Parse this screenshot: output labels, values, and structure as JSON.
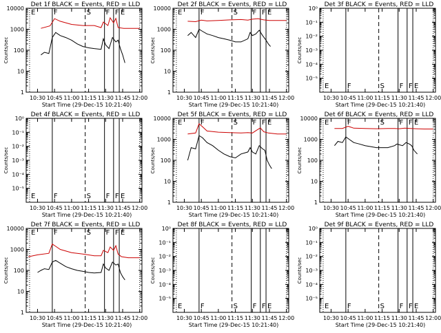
{
  "colors": {
    "events": "#000000",
    "lld": "#cc0000",
    "axis": "#000000"
  },
  "time_axis": {
    "ticks": [
      "10:30",
      "10:45",
      "11:00",
      "11:15",
      "11:30",
      "11:45",
      "12:00"
    ],
    "tick_minutes": [
      630,
      645,
      660,
      675,
      690,
      705,
      720
    ],
    "xlim_minutes": [
      620,
      722
    ],
    "label": "Start Time (29-Dec-15 10:21:40)"
  },
  "ylabel": "Counts/sec",
  "data_ticks": [
    "1",
    "10",
    "100",
    "1000",
    "10000"
  ],
  "empty_ticks": [
    "10⁰",
    "10⁻¹",
    "10⁻²",
    "10⁻³",
    "10⁻⁴",
    "10⁻⁵"
  ],
  "markers": [
    {
      "label": "E",
      "minute": 623,
      "style": "dotted"
    },
    {
      "label": "F",
      "minute": 643,
      "style": "solid"
    },
    {
      "label": "S",
      "minute": 672,
      "style": "dashed"
    },
    {
      "label": "F",
      "minute": 689,
      "style": "solid"
    },
    {
      "label": "F",
      "minute": 697,
      "style": "solid"
    },
    {
      "label": "E",
      "minute": 702,
      "style": "solid"
    }
  ],
  "chart_data": [
    {
      "type": "line",
      "title": "Det 1f BLACK = Events, RED = LLD",
      "scale": "log",
      "ylim": [
        1,
        10000
      ],
      "series": [
        {
          "name": "RED = LLD",
          "color": "#cc0000",
          "x": [
            633,
            641,
            645,
            650,
            660,
            670,
            680,
            686,
            688,
            692,
            694,
            697,
            699,
            701,
            706,
            712,
            720
          ],
          "y": [
            1100,
            1450,
            3200,
            2400,
            1700,
            1500,
            1500,
            1200,
            2200,
            1500,
            3500,
            2000,
            3300,
            1200,
            1100,
            1100,
            1100
          ]
        },
        {
          "name": "BLACK = Events",
          "color": "#000000",
          "x": [
            633,
            636,
            640,
            643,
            646,
            650,
            655,
            660,
            665,
            670,
            675,
            680,
            686,
            688,
            690,
            693,
            696,
            699,
            701,
            703,
            705,
            707
          ],
          "y": [
            60,
            80,
            70,
            400,
            700,
            500,
            400,
            300,
            200,
            150,
            130,
            120,
            110,
            350,
            180,
            120,
            400,
            250,
            300,
            120,
            60,
            25
          ]
        }
      ]
    },
    {
      "type": "line",
      "title": "Det 2f BLACK = Events, RED = LLD",
      "scale": "log",
      "ylim": [
        1,
        10000
      ],
      "series": [
        {
          "name": "RED = LLD",
          "color": "#cc0000",
          "x": [
            633,
            640,
            645,
            650,
            660,
            670,
            680,
            686,
            690,
            695,
            700,
            705,
            712,
            720
          ],
          "y": [
            2400,
            2300,
            2700,
            2500,
            2600,
            2800,
            2900,
            2700,
            3000,
            3200,
            2800,
            2600,
            2600,
            2600
          ]
        },
        {
          "name": "BLACK = Events",
          "color": "#000000",
          "x": [
            633,
            636,
            640,
            643,
            646,
            650,
            655,
            660,
            665,
            670,
            675,
            680,
            686,
            688,
            690,
            693,
            696,
            699,
            702,
            704,
            706
          ],
          "y": [
            500,
            700,
            400,
            1000,
            800,
            600,
            500,
            400,
            350,
            300,
            250,
            250,
            350,
            700,
            500,
            600,
            900,
            500,
            300,
            200,
            150
          ]
        }
      ]
    },
    {
      "type": "line",
      "title": "Det 3f BLACK = Events, RED = LLD",
      "scale": "log",
      "ylim": [
        1e-06,
        1
      ],
      "series": []
    },
    {
      "type": "line",
      "title": "Det 4f BLACK = Events, RED = LLD",
      "scale": "log",
      "ylim": [
        1e-06,
        1
      ],
      "series": []
    },
    {
      "type": "line",
      "title": "Det 5f BLACK = Events, RED = LLD",
      "scale": "log",
      "ylim": [
        1,
        10000
      ],
      "series": [
        {
          "name": "RED = LLD",
          "color": "#cc0000",
          "x": [
            633,
            640,
            643,
            646,
            650,
            660,
            670,
            680,
            686,
            690,
            694,
            697,
            700,
            704,
            712,
            720
          ],
          "y": [
            1800,
            2000,
            5500,
            4000,
            2500,
            2200,
            2100,
            2000,
            2100,
            2000,
            2800,
            3500,
            2300,
            2000,
            1800,
            1800
          ]
        },
        {
          "name": "BLACK = Events",
          "color": "#000000",
          "x": [
            633,
            636,
            640,
            643,
            646,
            650,
            655,
            660,
            665,
            670,
            675,
            680,
            686,
            688,
            690,
            693,
            696,
            699,
            701,
            703,
            705,
            707
          ],
          "y": [
            100,
            400,
            350,
            1500,
            1200,
            700,
            500,
            300,
            200,
            150,
            130,
            200,
            250,
            400,
            250,
            200,
            500,
            350,
            300,
            100,
            60,
            40
          ]
        }
      ]
    },
    {
      "type": "line",
      "title": "Det 6f BLACK = Events, RED = LLD",
      "scale": "log",
      "ylim": [
        1,
        10000
      ],
      "series": [
        {
          "name": "RED = LLD",
          "color": "#cc0000",
          "x": [
            633,
            640,
            645,
            650,
            660,
            670,
            680,
            686,
            690,
            695,
            700,
            705,
            712,
            720
          ],
          "y": [
            3300,
            3300,
            4200,
            3400,
            3300,
            3200,
            3300,
            3300,
            3200,
            3400,
            3300,
            3200,
            3100,
            3100
          ]
        },
        {
          "name": "BLACK = Events",
          "color": "#000000",
          "x": [
            633,
            636,
            640,
            643,
            646,
            650,
            655,
            660,
            665,
            670,
            675,
            680,
            686,
            688,
            690,
            693,
            696,
            699,
            701,
            703,
            706
          ],
          "y": [
            500,
            800,
            700,
            1300,
            1000,
            700,
            600,
            500,
            450,
            400,
            400,
            400,
            500,
            600,
            550,
            500,
            700,
            600,
            500,
            300,
            200
          ]
        }
      ]
    },
    {
      "type": "line",
      "title": "Det 7f BLACK = Events, RED = LLD",
      "scale": "log",
      "ylim": [
        1,
        10000
      ],
      "series": [
        {
          "name": "RED = LLD",
          "color": "#cc0000",
          "x": [
            622,
            630,
            640,
            643,
            646,
            650,
            660,
            670,
            680,
            686,
            688,
            692,
            694,
            697,
            699,
            701,
            704,
            710,
            720
          ],
          "y": [
            450,
            550,
            650,
            1800,
            1400,
            1000,
            700,
            600,
            500,
            500,
            900,
            700,
            1300,
            900,
            1500,
            600,
            450,
            400,
            400
          ]
        },
        {
          "name": "BLACK = Events",
          "color": "#000000",
          "x": [
            630,
            633,
            636,
            640,
            643,
            646,
            650,
            655,
            660,
            665,
            670,
            675,
            680,
            686,
            688,
            690,
            693,
            696,
            699,
            701,
            703,
            705,
            707
          ],
          "y": [
            80,
            100,
            120,
            110,
            250,
            300,
            220,
            150,
            120,
            100,
            90,
            80,
            75,
            80,
            200,
            130,
            100,
            250,
            180,
            200,
            80,
            50,
            35
          ]
        }
      ]
    },
    {
      "type": "line",
      "title": "Det 8f BLACK = Events, RED = LLD",
      "scale": "log",
      "ylim": [
        1e-06,
        1
      ],
      "series": []
    },
    {
      "type": "line",
      "title": "Det 9f BLACK = Events, RED = LLD",
      "scale": "log",
      "ylim": [
        1e-06,
        1
      ],
      "series": []
    }
  ]
}
